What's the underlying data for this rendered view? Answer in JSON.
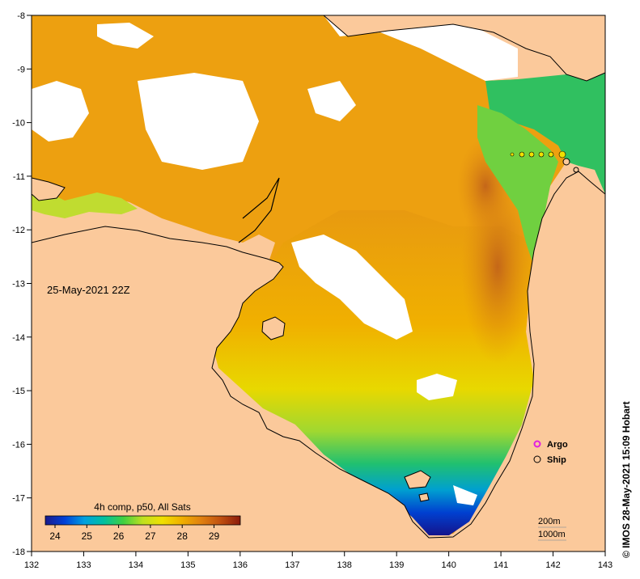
{
  "map": {
    "date_label": "25-May-2021 22Z",
    "credit": "© IMOS 28-May-2021 15:09 Hobart",
    "colorbar": {
      "title": "4h comp, p50, All Sats",
      "ticks": [
        "24",
        "25",
        "26",
        "27",
        "28",
        "29"
      ],
      "stops": [
        "#1a1a8c",
        "#0040d8",
        "#00a0e0",
        "#00c0a0",
        "#40d040",
        "#c0e020",
        "#f0e000",
        "#f0b000",
        "#e08010",
        "#c05010",
        "#8c1a0a"
      ]
    },
    "legend": {
      "argo_label": "Argo",
      "ship_label": "Ship",
      "argo_color": "#e020e0"
    },
    "depth_contours": {
      "label_200": "200m",
      "label_1000": "1000m"
    },
    "axes": {
      "x_ticks": [
        "132",
        "133",
        "134",
        "135",
        "136",
        "137",
        "138",
        "139",
        "140",
        "141",
        "142",
        "143"
      ],
      "y_ticks": [
        "-8",
        "-9",
        "-10",
        "-11",
        "-12",
        "-13",
        "-14",
        "-15",
        "-16",
        "-17",
        "-18"
      ]
    },
    "colors": {
      "land": "#fbc99b",
      "cloud": "#ffffff",
      "coast": "#000000"
    }
  }
}
